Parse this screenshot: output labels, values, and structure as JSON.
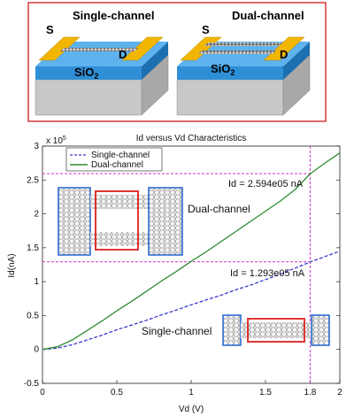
{
  "devices": {
    "single": {
      "title": "Single-channel",
      "source": "S",
      "drain": "D",
      "substrate_main": "SiO",
      "substrate_sub": "2"
    },
    "dual": {
      "title": "Dual-channel",
      "source": "S",
      "drain": "D",
      "substrate_main": "SiO",
      "substrate_sub": "2"
    }
  },
  "chart_data": {
    "type": "line",
    "title": "Id versus Vd Characteristics",
    "xlabel": "Vd (V)",
    "ylabel": "Id(nA)",
    "xlim": [
      0,
      2
    ],
    "ylim": [
      -0.5,
      3
    ],
    "y_exponent_label": "x 10",
    "y_exponent_sup": "5",
    "xticks": [
      "0",
      "0.5",
      "1",
      "1.5",
      "1.8",
      "2"
    ],
    "yticks": [
      "-0.5",
      "0",
      "0.5",
      "1",
      "1.5",
      "2",
      "2.5",
      "3"
    ],
    "legend_position": "top-left",
    "grid": false,
    "series": [
      {
        "name": "Single-channel",
        "color": "#3a3acc",
        "style": "dashed",
        "x": [
          0,
          0.1,
          0.2,
          0.3,
          0.4,
          0.5,
          0.6,
          0.7,
          0.8,
          0.9,
          1.0,
          1.1,
          1.2,
          1.3,
          1.4,
          1.5,
          1.6,
          1.7,
          1.8,
          1.9,
          2.0
        ],
        "y": [
          0,
          0.02,
          0.07,
          0.14,
          0.21,
          0.29,
          0.36,
          0.43,
          0.51,
          0.58,
          0.66,
          0.73,
          0.8,
          0.88,
          0.95,
          1.03,
          1.11,
          1.2,
          1.29,
          1.37,
          1.45
        ]
      },
      {
        "name": "Dual-channel",
        "color": "#2e8b2e",
        "style": "solid",
        "x": [
          0,
          0.1,
          0.2,
          0.3,
          0.4,
          0.5,
          0.6,
          0.7,
          0.8,
          0.9,
          1.0,
          1.1,
          1.2,
          1.3,
          1.4,
          1.5,
          1.6,
          1.7,
          1.8,
          1.9,
          2.0
        ],
        "y": [
          0,
          0.04,
          0.14,
          0.28,
          0.42,
          0.57,
          0.71,
          0.86,
          1.01,
          1.15,
          1.3,
          1.44,
          1.59,
          1.74,
          1.89,
          2.04,
          2.19,
          2.36,
          2.59,
          2.75,
          2.9
        ]
      }
    ],
    "annotations": [
      {
        "text": "Id = 2.594e05 nA",
        "x": 1.8,
        "y": 2.594
      },
      {
        "text": "Id = 1.293e05 nA",
        "x": 1.8,
        "y": 1.293
      }
    ],
    "inset_labels": {
      "dual": "Dual-channel",
      "single": "Single-channel"
    },
    "reference_lines": {
      "x": 1.8,
      "y": [
        2.594,
        1.293
      ],
      "color": "#cc33cc"
    }
  }
}
